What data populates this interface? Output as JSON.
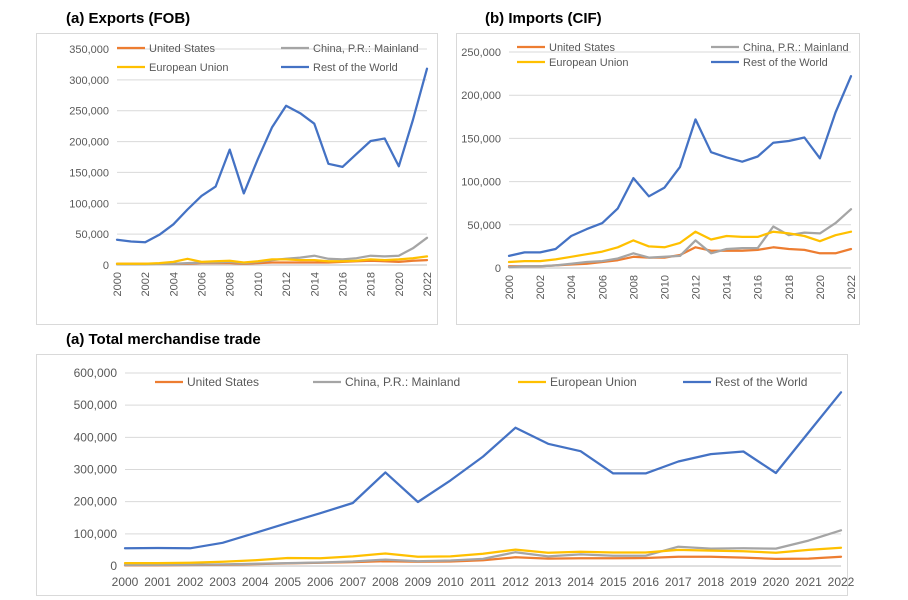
{
  "colors": {
    "United States": "#ed7d31",
    "China, P.R.: Mainland": "#a5a5a5",
    "European Union": "#ffc000",
    "Rest of the World": "#4472c4",
    "grid": "#d9d9d9",
    "axis_text": "#595959"
  },
  "chart_data": [
    {
      "id": "exports",
      "type": "line",
      "title": "(a)  Exports (FOB)",
      "xlabel": "",
      "ylabel": "",
      "x": [
        2000,
        2001,
        2002,
        2003,
        2004,
        2005,
        2006,
        2007,
        2008,
        2009,
        2010,
        2011,
        2012,
        2013,
        2014,
        2015,
        2016,
        2017,
        2018,
        2019,
        2020,
        2021,
        2022
      ],
      "x_tick_labels": [
        "2000",
        "2002",
        "2004",
        "2006",
        "2008",
        "2010",
        "2012",
        "2014",
        "2016",
        "2018",
        "2020",
        "2022"
      ],
      "ylim": [
        0,
        350000
      ],
      "y_ticks": [
        "0",
        "50,000",
        "100,000",
        "150,000",
        "200,000",
        "250,000",
        "300,000",
        "350,000"
      ],
      "grid": "horizontal",
      "legend_position": "top",
      "series": [
        {
          "name": "United States",
          "values": [
            2000,
            2000,
            2000,
            2000,
            2000,
            2000,
            3000,
            3000,
            3000,
            2000,
            3000,
            4000,
            4000,
            4000,
            4000,
            4000,
            5000,
            6000,
            7000,
            6000,
            5000,
            7000,
            8000
          ]
        },
        {
          "name": "China, P.R.: Mainland",
          "values": [
            1000,
            1000,
            1000,
            2000,
            2000,
            3000,
            4000,
            4000,
            5000,
            3000,
            5000,
            8000,
            10000,
            12000,
            15000,
            10000,
            9000,
            11000,
            15000,
            14000,
            15000,
            27000,
            44000
          ]
        },
        {
          "name": "European Union",
          "values": [
            2000,
            2000,
            2000,
            3000,
            5000,
            10000,
            5000,
            6000,
            7000,
            4000,
            6000,
            9000,
            9000,
            8000,
            8000,
            6000,
            6000,
            7000,
            9000,
            8000,
            9000,
            11000,
            14000
          ]
        },
        {
          "name": "Rest of the World",
          "values": [
            41000,
            38000,
            37000,
            49000,
            66000,
            90000,
            112000,
            127000,
            187000,
            116000,
            172000,
            223000,
            258000,
            246000,
            229000,
            164000,
            159000,
            180000,
            201000,
            205000,
            160000,
            235000,
            318000
          ]
        }
      ]
    },
    {
      "id": "imports",
      "type": "line",
      "title": "(b)  Imports (CIF)",
      "xlabel": "",
      "ylabel": "",
      "x": [
        2000,
        2001,
        2002,
        2003,
        2004,
        2005,
        2006,
        2007,
        2008,
        2009,
        2010,
        2011,
        2012,
        2013,
        2014,
        2015,
        2016,
        2017,
        2018,
        2019,
        2020,
        2021,
        2022
      ],
      "x_tick_labels": [
        "2000",
        "2002",
        "2004",
        "2006",
        "2008",
        "2010",
        "2012",
        "2014",
        "2016",
        "2018",
        "2020",
        "2022"
      ],
      "ylim": [
        0,
        250000
      ],
      "y_ticks": [
        "0",
        "50,000",
        "100,000",
        "150,000",
        "200,000",
        "250,000"
      ],
      "grid": "horizontal",
      "legend_position": "top",
      "series": [
        {
          "name": "United States",
          "values": [
            2000,
            2000,
            2000,
            3000,
            4000,
            5000,
            7000,
            9000,
            13000,
            12000,
            12000,
            15000,
            24000,
            20000,
            20000,
            20000,
            21000,
            24000,
            22000,
            21000,
            17000,
            17000,
            22000
          ]
        },
        {
          "name": "China, P.R.: Mainland",
          "values": [
            1000,
            2000,
            2000,
            3000,
            5000,
            7000,
            8000,
            11000,
            17000,
            12000,
            13000,
            14000,
            32000,
            17000,
            22000,
            23000,
            23000,
            48000,
            38000,
            41000,
            40000,
            52000,
            68000
          ]
        },
        {
          "name": "European Union",
          "values": [
            7000,
            8000,
            8000,
            10000,
            13000,
            16000,
            19000,
            24000,
            32000,
            25000,
            24000,
            29000,
            42000,
            33000,
            37000,
            36000,
            36000,
            42000,
            40000,
            37000,
            31000,
            38000,
            42000
          ]
        },
        {
          "name": "Rest of the World",
          "values": [
            14000,
            18000,
            18000,
            22000,
            37000,
            45000,
            52000,
            69000,
            104000,
            83000,
            93000,
            117000,
            172000,
            134000,
            128000,
            123000,
            129000,
            145000,
            147000,
            151000,
            127000,
            180000,
            222000
          ]
        }
      ]
    },
    {
      "id": "total",
      "type": "line",
      "title": "(a)  Total merchandise trade",
      "xlabel": "",
      "ylabel": "",
      "x": [
        2000,
        2001,
        2002,
        2003,
        2004,
        2005,
        2006,
        2007,
        2008,
        2009,
        2010,
        2011,
        2012,
        2013,
        2014,
        2015,
        2016,
        2017,
        2018,
        2019,
        2020,
        2021,
        2022
      ],
      "x_tick_labels": [
        "2000",
        "2001",
        "2002",
        "2003",
        "2004",
        "2005",
        "2006",
        "2007",
        "2008",
        "2009",
        "2010",
        "2011",
        "2012",
        "2013",
        "2014",
        "2015",
        "2016",
        "2017",
        "2018",
        "2019",
        "2020",
        "2021",
        "2022"
      ],
      "ylim": [
        0,
        600000
      ],
      "y_ticks": [
        "0",
        "100,000",
        "200,000",
        "300,000",
        "400,000",
        "500,000",
        "600,000"
      ],
      "grid": "horizontal",
      "legend_position": "top",
      "series": [
        {
          "name": "United States",
          "values": [
            2000,
            2000,
            3000,
            4000,
            6000,
            8000,
            10000,
            12000,
            15000,
            13000,
            14000,
            18000,
            27000,
            23000,
            24000,
            24000,
            25000,
            29000,
            29000,
            26000,
            22000,
            23000,
            29000
          ]
        },
        {
          "name": "China, P.R.: Mainland",
          "values": [
            3000,
            3000,
            4000,
            5000,
            7000,
            9000,
            11000,
            14000,
            20000,
            15000,
            17000,
            22000,
            43000,
            30000,
            36000,
            32000,
            32000,
            60000,
            54000,
            55000,
            54000,
            79000,
            111000
          ]
        },
        {
          "name": "European Union",
          "values": [
            9000,
            9000,
            10000,
            13000,
            18000,
            25000,
            24000,
            30000,
            39000,
            29000,
            30000,
            38000,
            51000,
            41000,
            44000,
            42000,
            42000,
            50000,
            48000,
            46000,
            41000,
            50000,
            57000
          ]
        },
        {
          "name": "Rest of the World",
          "values": [
            55000,
            56000,
            55000,
            72000,
            103000,
            134000,
            164000,
            196000,
            291000,
            199000,
            266000,
            340000,
            430000,
            380000,
            357000,
            288000,
            288000,
            325000,
            348000,
            356000,
            289000,
            415000,
            540000
          ]
        }
      ]
    }
  ]
}
